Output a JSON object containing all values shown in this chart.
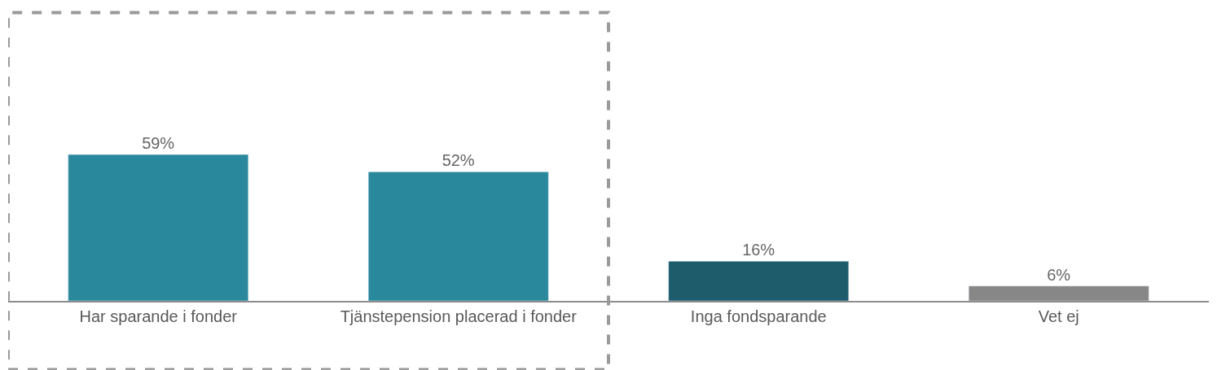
{
  "chart_data": {
    "type": "bar",
    "categories": [
      "Har sparande i fonder",
      "Tjänstepension placerad i fonder",
      "Inga fondsparande",
      "Vet ej"
    ],
    "values": [
      59,
      52,
      16,
      6
    ],
    "colors": [
      "#2a889d",
      "#2a889d",
      "#1e5b6b",
      "#878787"
    ],
    "value_labels": [
      "59%",
      "52%",
      "16%",
      "6%"
    ],
    "tick_labels": "x"
  }
}
